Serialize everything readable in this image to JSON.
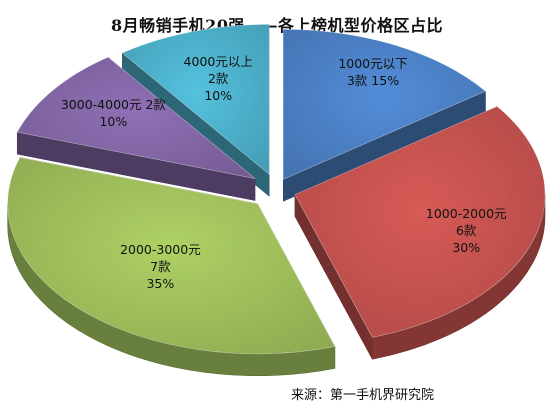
{
  "chart_data": {
    "type": "pie",
    "title": "8月畅销手机20强——各上榜机型价格区占比",
    "source": "来源：第一手机界研究院",
    "slices": [
      {
        "category": "1000元以下",
        "count_label": "3款",
        "percent_label": "15%",
        "value": 15,
        "color": "#4a7ec2"
      },
      {
        "category": "1000-2000元",
        "count_label": "6款",
        "percent_label": "30%",
        "value": 30,
        "color": "#c0504d"
      },
      {
        "category": "2000-3000元",
        "count_label": "7款",
        "percent_label": "35%",
        "value": 35,
        "color": "#9bbb59"
      },
      {
        "category": "3000-4000元",
        "count_label": "2款",
        "percent_label": "10%",
        "value": 10,
        "color": "#8064a2"
      },
      {
        "category": "4000元以上",
        "count_label": "2款",
        "percent_label": "10%",
        "value": 10,
        "color": "#4bacc6"
      }
    ]
  }
}
